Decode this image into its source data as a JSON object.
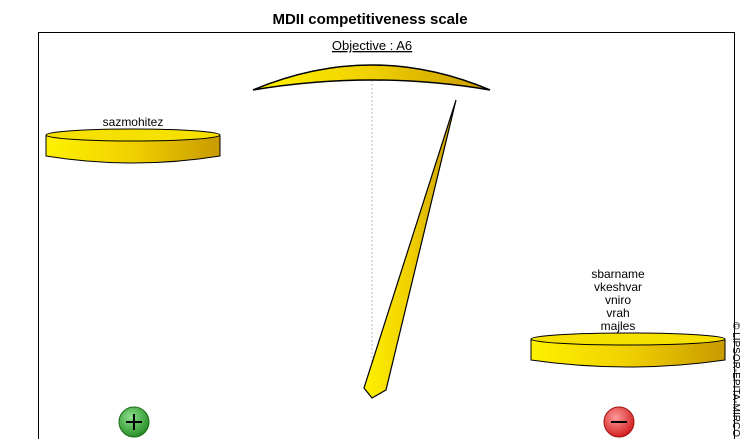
{
  "header": {
    "title": "MDII competitiveness scale"
  },
  "scale": {
    "objective": "Objective : A6",
    "left_pan": {
      "items": [
        "sazmohitez"
      ]
    },
    "right_pan": {
      "items": [
        "sbarname",
        "vkeshvar",
        "vniro",
        "vrah",
        "majles"
      ]
    },
    "copyright": "© LIPSOR-EPITA-MIRCO"
  }
}
